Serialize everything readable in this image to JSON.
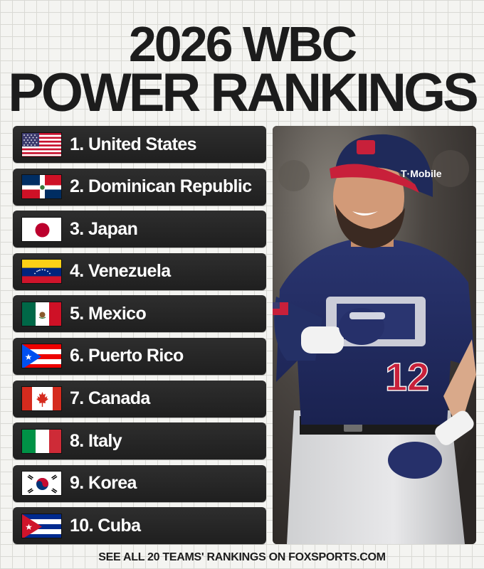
{
  "title": {
    "line1": "2026 WBC",
    "line2": "POWER RANKINGS"
  },
  "rankings": [
    {
      "label": "1. United States",
      "flag": "us-flag-icon"
    },
    {
      "label": "2. Dominican Republic",
      "flag": "dominican-republic-flag-icon"
    },
    {
      "label": "3. Japan",
      "flag": "japan-flag-icon"
    },
    {
      "label": "4. Venezuela",
      "flag": "venezuela-flag-icon"
    },
    {
      "label": "5. Mexico",
      "flag": "mexico-flag-icon"
    },
    {
      "label": "6. Puerto Rico",
      "flag": "puerto-rico-flag-icon"
    },
    {
      "label": "7. Canada",
      "flag": "canada-flag-icon"
    },
    {
      "label": "8. Italy",
      "flag": "italy-flag-icon"
    },
    {
      "label": "9. Korea",
      "flag": "korea-flag-icon"
    },
    {
      "label": "10. Cuba",
      "flag": "cuba-flag-icon"
    }
  ],
  "photo": {
    "helmet_sponsor": "T·Mobile",
    "jersey_number": "12"
  },
  "footer": {
    "text": "SEE ALL 20 TEAMS' RANKINGS ON FOXSPORTS.COM"
  },
  "colors": {
    "row_background": "#262626",
    "jersey_navy": "#1f2a5a",
    "jersey_red": "#c8203a"
  }
}
